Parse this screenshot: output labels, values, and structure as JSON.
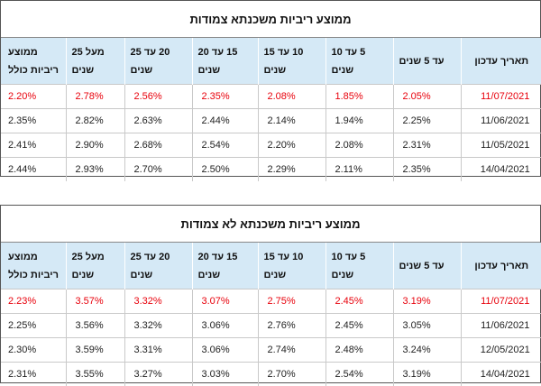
{
  "tables": [
    {
      "title": "ממוצע ריביות משכנתא צמודות",
      "headers": [
        "תאריך עדכון",
        "עד 5 שנים",
        "5 עד 10 שנים",
        "10 עד 15 שנים",
        "15 עד 20 שנים",
        "20 עד 25 שנים",
        "מעל 25 שנים",
        "ממוצע ריביות כולל"
      ],
      "rows": [
        [
          "11/07/2021",
          "2.05%",
          "1.85%",
          "2.08%",
          "2.35%",
          "2.56%",
          "2.78%",
          "2.20%"
        ],
        [
          "11/06/2021",
          "2.25%",
          "1.94%",
          "2.14%",
          "2.44%",
          "2.63%",
          "2.82%",
          "2.35%"
        ],
        [
          "11/05/2021",
          "2.31%",
          "2.08%",
          "2.20%",
          "2.54%",
          "2.68%",
          "2.90%",
          "2.41%"
        ],
        [
          "14/04/2021",
          "2.35%",
          "2.11%",
          "2.29%",
          "2.50%",
          "2.70%",
          "2.93%",
          "2.44%"
        ]
      ]
    },
    {
      "title": "ממוצע ריביות משכנתא לא צמודות",
      "headers": [
        "תאריך עדכון",
        "עד 5 שנים",
        "5 עד 10 שנים",
        "10 עד 15 שנים",
        "15 עד 20 שנים",
        "20 עד 25 שנים",
        "מעל 25 שנים",
        "ממוצע ריביות כולל"
      ],
      "rows": [
        [
          "11/07/2021",
          "3.19%",
          "2.45%",
          "2.75%",
          "3.07%",
          "3.32%",
          "3.57%",
          "2.23%"
        ],
        [
          "11/06/2021",
          "3.05%",
          "2.45%",
          "2.76%",
          "3.06%",
          "3.32%",
          "3.56%",
          "2.25%"
        ],
        [
          "12/05/2021",
          "3.24%",
          "2.48%",
          "2.74%",
          "3.06%",
          "3.31%",
          "3.59%",
          "2.30%"
        ],
        [
          "14/04/2021",
          "3.19%",
          "2.54%",
          "2.70%",
          "3.03%",
          "3.27%",
          "3.55%",
          "2.31%"
        ]
      ]
    }
  ],
  "highlight_color": "#e8000b",
  "header_bg": "#d5e9f6"
}
